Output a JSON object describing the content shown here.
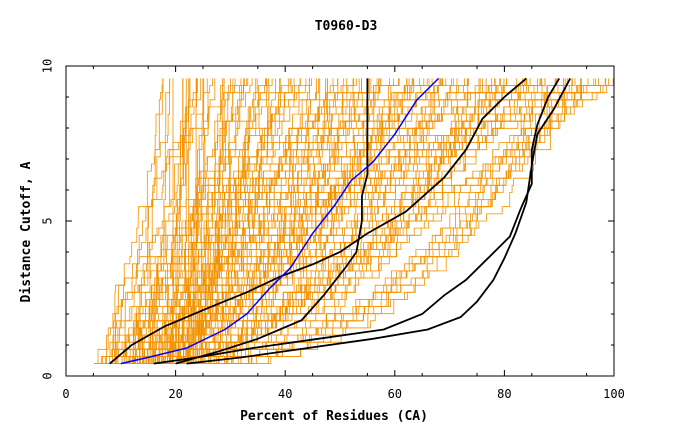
{
  "chart_data": {
    "type": "line",
    "title": "T0960-D3",
    "xlabel": "Percent of Residues (CA)",
    "ylabel": "Distance Cutoff, A",
    "xlim": [
      0,
      100
    ],
    "ylim": [
      0,
      10
    ],
    "x_ticks": [
      "0",
      "20",
      "40",
      "60",
      "80",
      "100"
    ],
    "y_ticks": [
      "0",
      "5",
      "10"
    ],
    "grid": false,
    "colors": {
      "background_models": "#f39200",
      "highlighted_models": "#000000",
      "target_model": "#0000ff"
    },
    "background_model_count": 150,
    "series": [
      {
        "role": "target",
        "color": "#0000ff",
        "values": [
          [
            10,
            0.4
          ],
          [
            15,
            0.6
          ],
          [
            22,
            0.9
          ],
          [
            29,
            1.5
          ],
          [
            33,
            2.0
          ],
          [
            37,
            2.8
          ],
          [
            41,
            3.5
          ],
          [
            45,
            4.6
          ],
          [
            49,
            5.5
          ],
          [
            52,
            6.3
          ],
          [
            56,
            6.9
          ],
          [
            60,
            7.8
          ],
          [
            64,
            8.9
          ],
          [
            68,
            9.6
          ]
        ]
      },
      {
        "role": "highlight",
        "color": "#000000",
        "values": [
          [
            8,
            0.4
          ],
          [
            12,
            1.0
          ],
          [
            18,
            1.6
          ],
          [
            26,
            2.2
          ],
          [
            33,
            2.7
          ],
          [
            39,
            3.2
          ],
          [
            45,
            3.6
          ],
          [
            50,
            4.0
          ],
          [
            55,
            4.6
          ],
          [
            62,
            5.3
          ],
          [
            69,
            6.4
          ],
          [
            73,
            7.3
          ],
          [
            76,
            8.3
          ],
          [
            80,
            9.0
          ],
          [
            84,
            9.6
          ]
        ]
      },
      {
        "role": "highlight",
        "color": "#000000",
        "values": [
          [
            20,
            0.4
          ],
          [
            28,
            0.8
          ],
          [
            35,
            1.2
          ],
          [
            43,
            1.8
          ],
          [
            47,
            2.6
          ],
          [
            51,
            3.5
          ],
          [
            53,
            4.0
          ],
          [
            54,
            5.0
          ],
          [
            54,
            5.8
          ],
          [
            55,
            6.5
          ],
          [
            55,
            8.0
          ],
          [
            55,
            9.6
          ]
        ]
      },
      {
        "role": "highlight",
        "color": "#000000",
        "values": [
          [
            16,
            0.4
          ],
          [
            24,
            0.6
          ],
          [
            34,
            0.9
          ],
          [
            46,
            1.2
          ],
          [
            58,
            1.5
          ],
          [
            65,
            2.0
          ],
          [
            69,
            2.6
          ],
          [
            73,
            3.1
          ],
          [
            77,
            3.8
          ],
          [
            81,
            4.5
          ],
          [
            83,
            5.4
          ],
          [
            85,
            6.2
          ],
          [
            85,
            7.3
          ],
          [
            86,
            8.1
          ],
          [
            88,
            9.0
          ],
          [
            90,
            9.6
          ]
        ]
      },
      {
        "role": "highlight",
        "color": "#000000",
        "values": [
          [
            22,
            0.4
          ],
          [
            32,
            0.6
          ],
          [
            44,
            0.9
          ],
          [
            56,
            1.2
          ],
          [
            66,
            1.5
          ],
          [
            72,
            1.9
          ],
          [
            75,
            2.4
          ],
          [
            78,
            3.1
          ],
          [
            80,
            3.8
          ],
          [
            82,
            4.6
          ],
          [
            84,
            5.6
          ],
          [
            85,
            6.8
          ],
          [
            86,
            7.8
          ],
          [
            89,
            8.6
          ],
          [
            92,
            9.6
          ]
        ]
      }
    ]
  }
}
